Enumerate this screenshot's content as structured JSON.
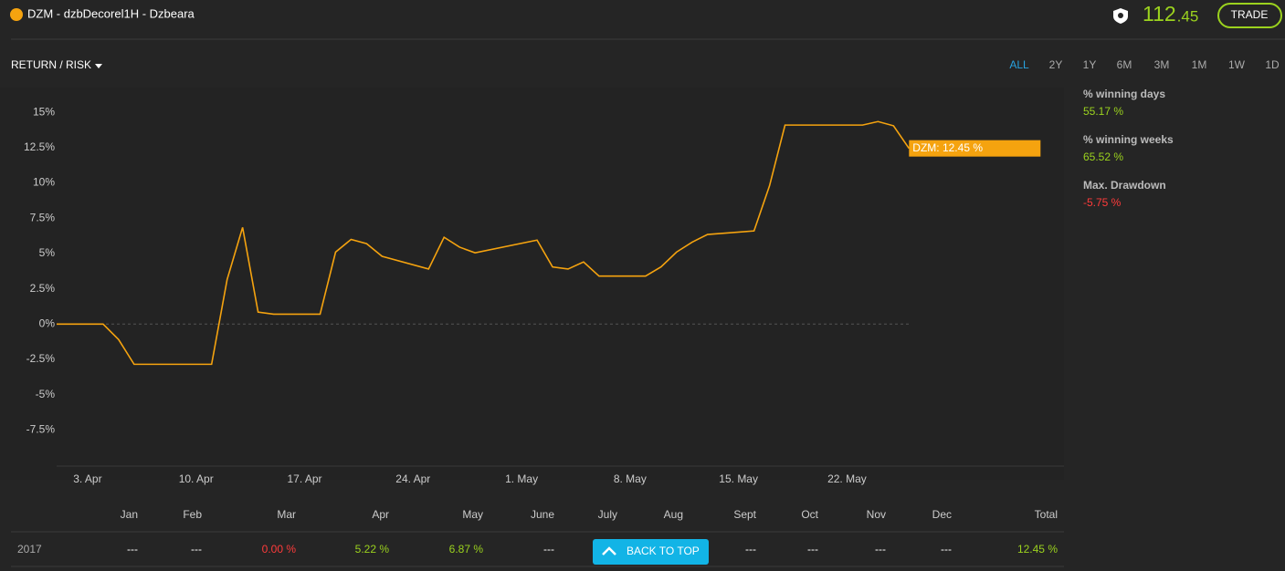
{
  "header": {
    "title": "DZM - dzbDecorel1H - Dzbeara",
    "price_main": "112",
    "price_fraction": ".45",
    "trade_button": "TRADE"
  },
  "toolbar": {
    "view_menu": "RETURN / RISK",
    "ranges": [
      "ALL",
      "2Y",
      "1Y",
      "6M",
      "3M",
      "1M",
      "1W",
      "1D"
    ],
    "active_range": 0
  },
  "stats": [
    {
      "label": "% winning days",
      "value": "55.17 %",
      "color": "#9bd21e"
    },
    {
      "label": "% winning weeks",
      "value": "65.52 %",
      "color": "#9bd21e"
    },
    {
      "label": "Max. Drawdown",
      "value": "-5.75 %",
      "color": "#ff3b3b"
    }
  ],
  "chart_data": {
    "type": "line",
    "color": "#f5a30f",
    "x": [
      "1. Apr",
      "4. Apr",
      "5. Apr",
      "6. Apr",
      "11. Apr",
      "12. Apr",
      "13. Apr",
      "14. Apr",
      "15. Apr",
      "18. Apr",
      "19. Apr",
      "20. Apr",
      "21. Apr",
      "22. Apr",
      "25. Apr",
      "26. Apr",
      "27. Apr",
      "28. Apr",
      "2. May",
      "3. May",
      "4. May",
      "5. May",
      "6. May",
      "9. May",
      "10. May",
      "11. May",
      "12. May",
      "13. May",
      "16. May",
      "17. May",
      "18. May",
      "23. May",
      "24. May",
      "25. May",
      "26. May"
    ],
    "values": [
      0,
      0,
      -1.1,
      -2.85,
      -2.85,
      3.15,
      6.85,
      0.85,
      0.7,
      0.7,
      5.1,
      6.0,
      5.7,
      4.8,
      3.9,
      6.15,
      5.45,
      5.05,
      5.95,
      4.05,
      3.9,
      4.4,
      3.4,
      3.4,
      4.05,
      5.1,
      5.8,
      6.35,
      6.6,
      9.8,
      14.1,
      14.1,
      14.35,
      14.05,
      12.45
    ],
    "annotation": "DZM: 12.45 %",
    "xlim": [
      "1. Apr",
      "5. Jun"
    ],
    "xticks": [
      "3. Apr",
      "10. Apr",
      "17. Apr",
      "24. Apr",
      "1. May",
      "8. May",
      "15. May",
      "22. May"
    ],
    "ylim": [
      -10,
      16.5
    ],
    "yticks": [
      {
        "value": 15,
        "label": "15%"
      },
      {
        "value": 12.5,
        "label": "12.5%"
      },
      {
        "value": 10,
        "label": "10%"
      },
      {
        "value": 7.5,
        "label": "7.5%"
      },
      {
        "value": 5,
        "label": "5%"
      },
      {
        "value": 2.5,
        "label": "2.5%"
      },
      {
        "value": 0,
        "label": "0%"
      },
      {
        "value": -2.5,
        "label": "-2.5%"
      },
      {
        "value": -5,
        "label": "-5%"
      },
      {
        "value": -7.5,
        "label": "-7.5%"
      }
    ]
  },
  "table": {
    "columns": [
      "Jan",
      "Feb",
      "Mar",
      "Apr",
      "May",
      "June",
      "July",
      "Aug",
      "Sept",
      "Oct",
      "Nov",
      "Dec",
      "Total"
    ],
    "rows": [
      {
        "label": "2017",
        "cells": [
          {
            "text": "---",
            "color": "#ffffff"
          },
          {
            "text": "---",
            "color": "#ffffff"
          },
          {
            "text": "0.00 %",
            "color": "#ff3b3b"
          },
          {
            "text": "5.22 %",
            "color": "#9bd21e"
          },
          {
            "text": "6.87 %",
            "color": "#9bd21e"
          },
          {
            "text": "---",
            "color": "#ffffff"
          },
          null,
          null,
          {
            "text": "---",
            "color": "#ffffff"
          },
          {
            "text": "---",
            "color": "#ffffff"
          },
          {
            "text": "---",
            "color": "#ffffff"
          },
          {
            "text": "---",
            "color": "#ffffff"
          },
          {
            "text": "12.45 %",
            "color": "#9bd21e"
          }
        ]
      }
    ]
  },
  "back_to_top": "BACK TO TOP"
}
